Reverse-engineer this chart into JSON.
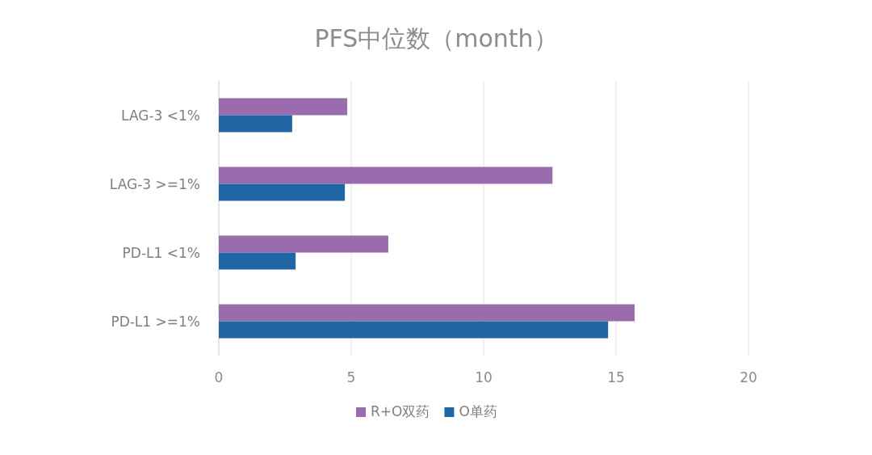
{
  "chart_data": {
    "type": "bar",
    "orientation": "horizontal",
    "title": "PFS中位数（month）",
    "categories": [
      "LAG-3 <1%",
      "LAG-3 >=1%",
      "PD-L1 <1%",
      "PD-L1 >=1%"
    ],
    "series": [
      {
        "name": "R+O双药",
        "color": "#9b6cad",
        "values": [
          4.85,
          12.6,
          6.4,
          15.7
        ]
      },
      {
        "name": "O单药",
        "color": "#2166a4",
        "values": [
          2.77,
          4.76,
          2.9,
          14.7
        ]
      }
    ],
    "xlim": [
      0,
      20
    ],
    "xticks": [
      0,
      5,
      10,
      15,
      20
    ],
    "grid": "x",
    "legend": "bottom"
  }
}
